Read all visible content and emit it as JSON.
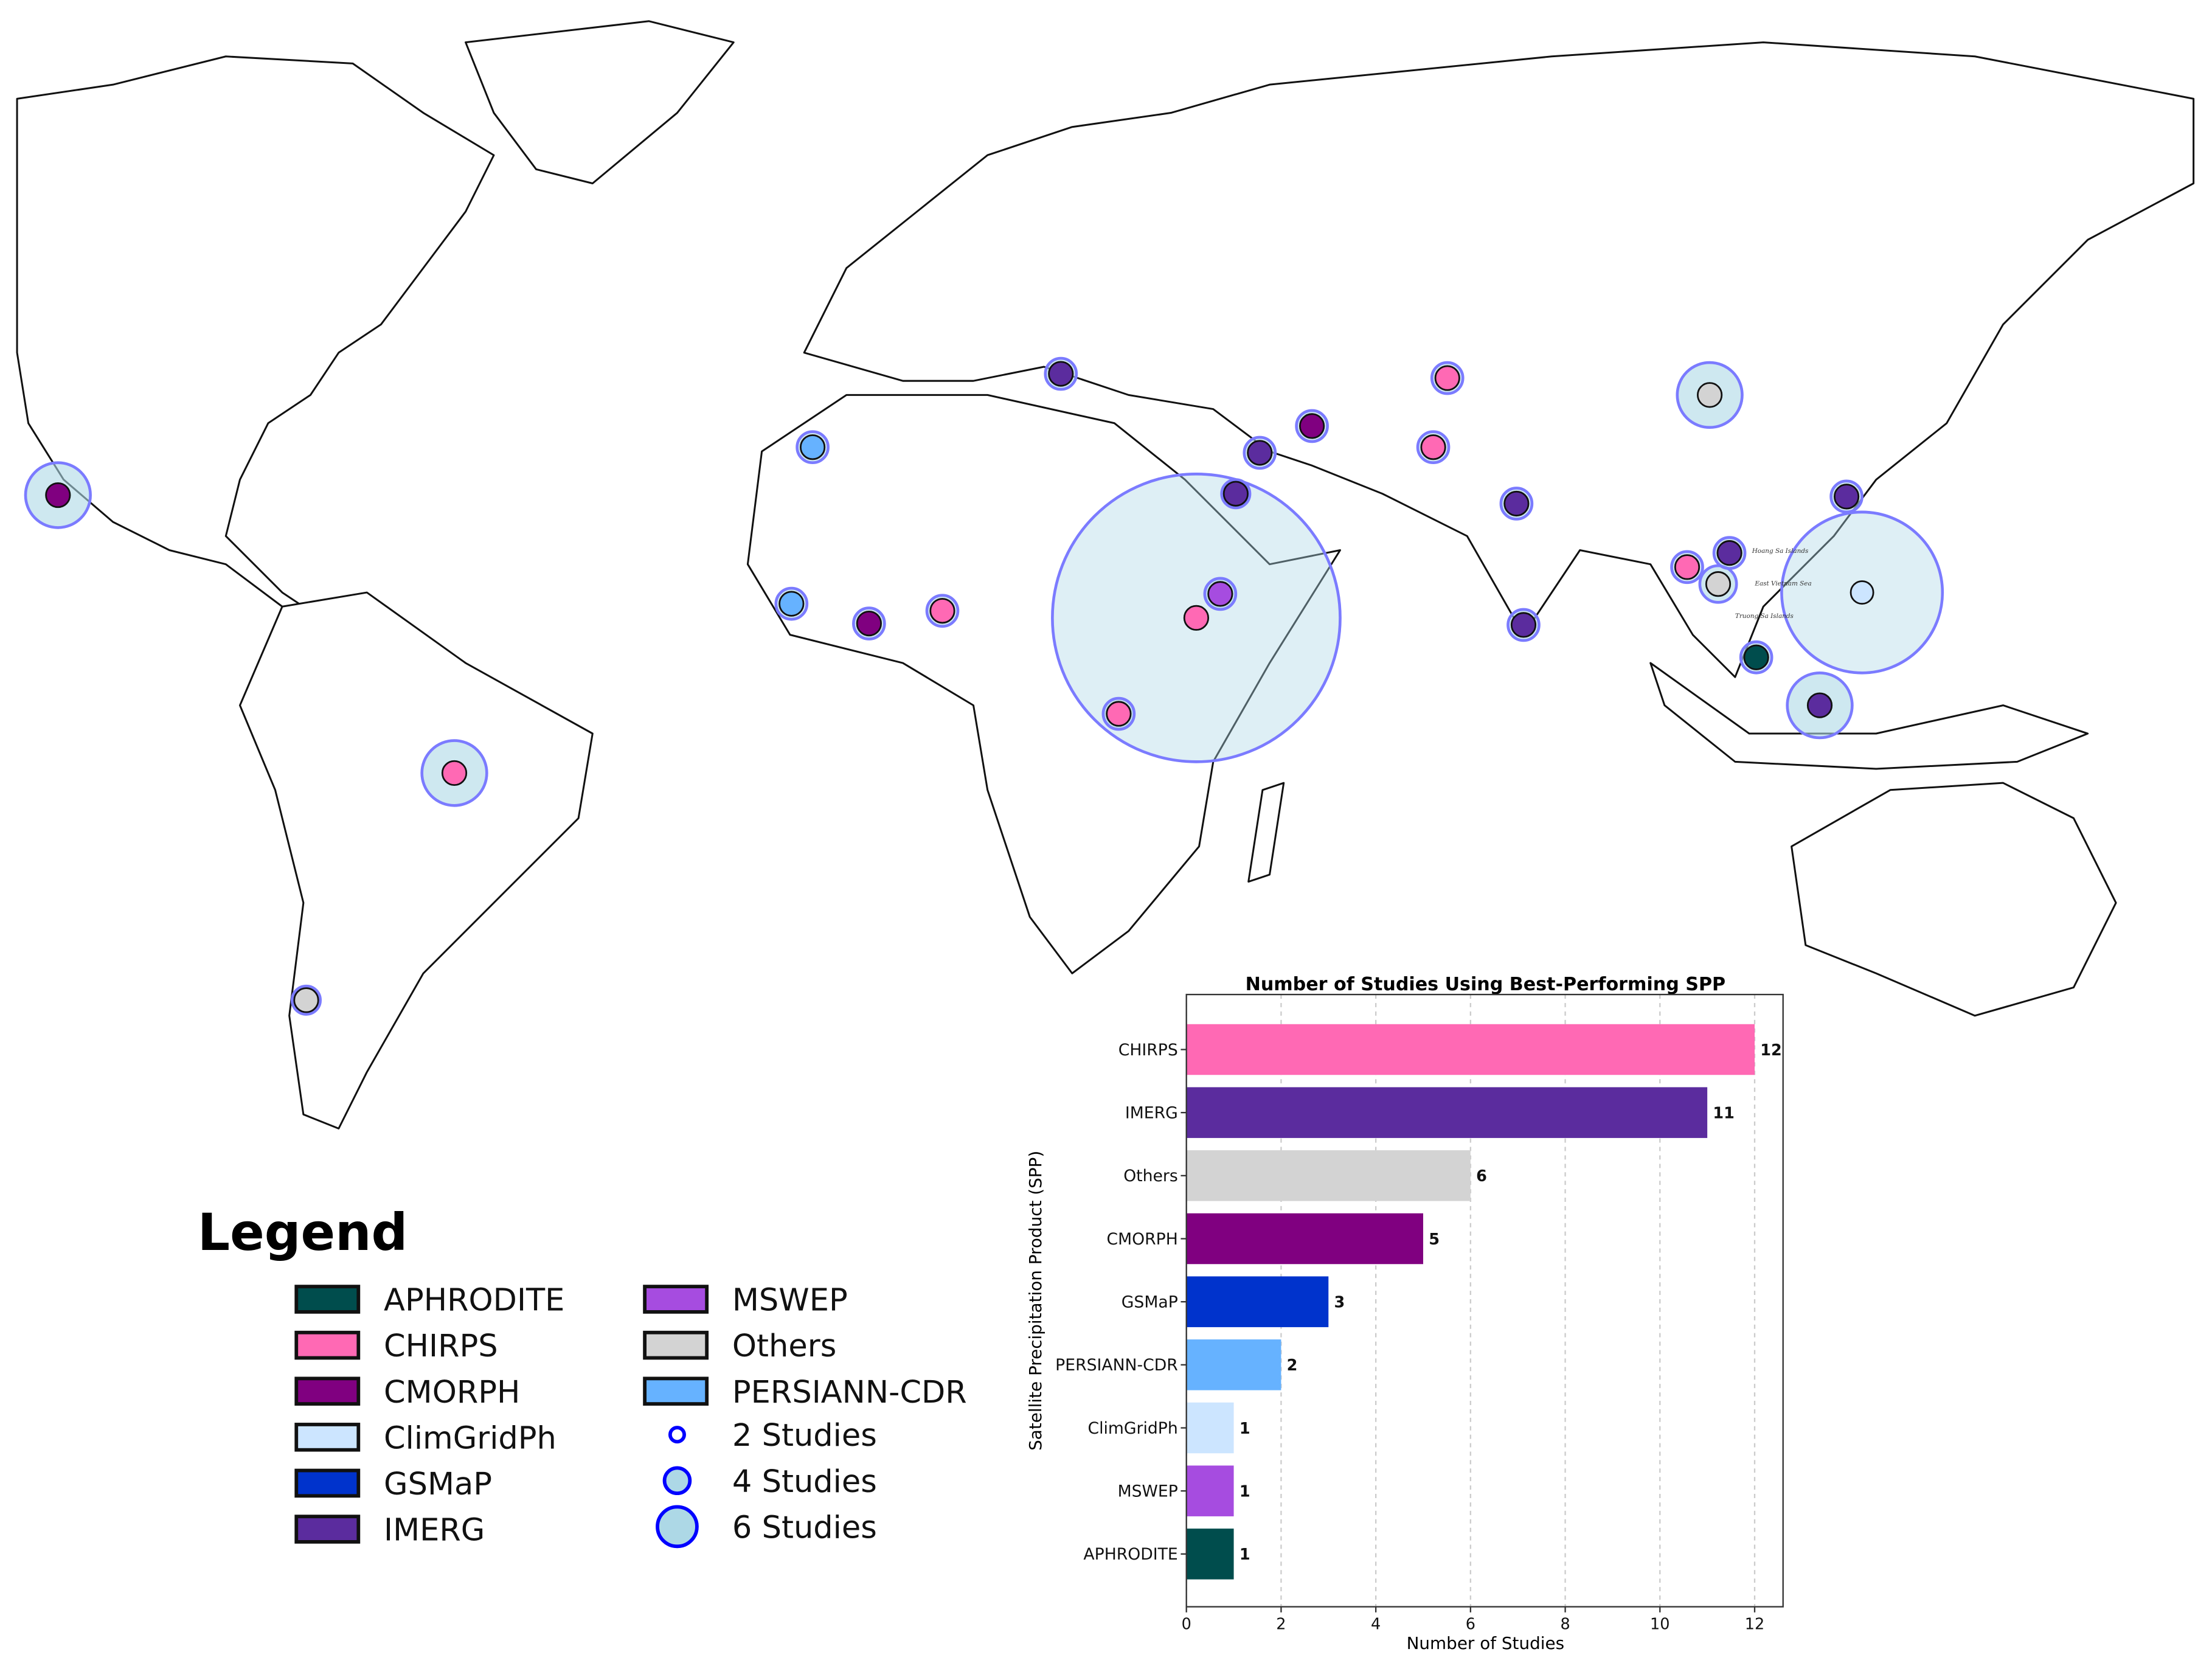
{
  "map": {
    "labels": {
      "hoang_sa": "Hoang Sa Islands",
      "east_vietnam_sea": "East Vietnam Sea",
      "truong_sa": "Truong Sa Islands"
    },
    "halo_color": "#add8e6",
    "halo_stroke": "#7b7bff",
    "markers": [
      {
        "product": "CMORPH"
      },
      {
        "product": "CHIRPS"
      },
      {
        "product": "Others"
      },
      {
        "product": "PERSIANN-CDR"
      },
      {
        "product": "PERSIANN-CDR"
      },
      {
        "product": "CMORPH"
      },
      {
        "product": "CHIRPS"
      },
      {
        "product": "IMERG"
      },
      {
        "product": "IMERG"
      },
      {
        "product": "CMORPH"
      },
      {
        "product": "IMERG"
      },
      {
        "product": "CHIRPS"
      },
      {
        "product": "MSWEP"
      },
      {
        "product": "CHIRPS"
      },
      {
        "product": "CHIRPS"
      },
      {
        "product": "CHIRPS"
      },
      {
        "product": "IMERG"
      },
      {
        "product": "IMERG"
      },
      {
        "product": "Others"
      },
      {
        "product": "IMERG"
      },
      {
        "product": "CHIRPS"
      },
      {
        "product": "IMERG"
      },
      {
        "product": "Others"
      },
      {
        "product": "APHRODITE"
      },
      {
        "product": "IMERG"
      },
      {
        "product": "ClimGridPh"
      }
    ]
  },
  "legend": {
    "title": "Legend",
    "products": [
      {
        "name": "APHRODITE",
        "color": "#004d4d"
      },
      {
        "name": "CHIRPS",
        "color": "#ff69b4"
      },
      {
        "name": "CMORPH",
        "color": "#800080"
      },
      {
        "name": "ClimGridPh",
        "color": "#cce5ff"
      },
      {
        "name": "GSMaP",
        "color": "#0033cc"
      },
      {
        "name": "IMERG",
        "color": "#5b2c9e"
      },
      {
        "name": "MSWEP",
        "color": "#a64ce0"
      },
      {
        "name": "Others",
        "color": "#d3d3d3"
      },
      {
        "name": "PERSIANN-CDR",
        "color": "#66b2ff"
      }
    ],
    "sizes": [
      {
        "label": "2 Studies"
      },
      {
        "label": "4 Studies"
      },
      {
        "label": "6 Studies"
      }
    ]
  },
  "chart_data": {
    "type": "bar",
    "orientation": "horizontal",
    "title": "Number of Studies Using Best-Performing SPP",
    "xlabel": "Number of Studies",
    "ylabel": "Satellite Precipitation Product (SPP)",
    "categories": [
      "CHIRPS",
      "IMERG",
      "Others",
      "CMORPH",
      "GSMaP",
      "PERSIANN-CDR",
      "ClimGridPh",
      "MSWEP",
      "APHRODITE"
    ],
    "values": [
      12,
      11,
      6,
      5,
      3,
      2,
      1,
      1,
      1
    ],
    "colors": [
      "#ff69b4",
      "#5b2c9e",
      "#d3d3d3",
      "#800080",
      "#0033cc",
      "#66b2ff",
      "#cce5ff",
      "#a64ce0",
      "#004d4d"
    ],
    "xlim": [
      0,
      12.6
    ],
    "xticks": [
      "0",
      "2",
      "4",
      "6",
      "8",
      "10",
      "12"
    ],
    "grid": "vertical dashed",
    "data_labels": [
      "12",
      "11",
      "6",
      "5",
      "3",
      "2",
      "1",
      "1",
      "1"
    ]
  }
}
